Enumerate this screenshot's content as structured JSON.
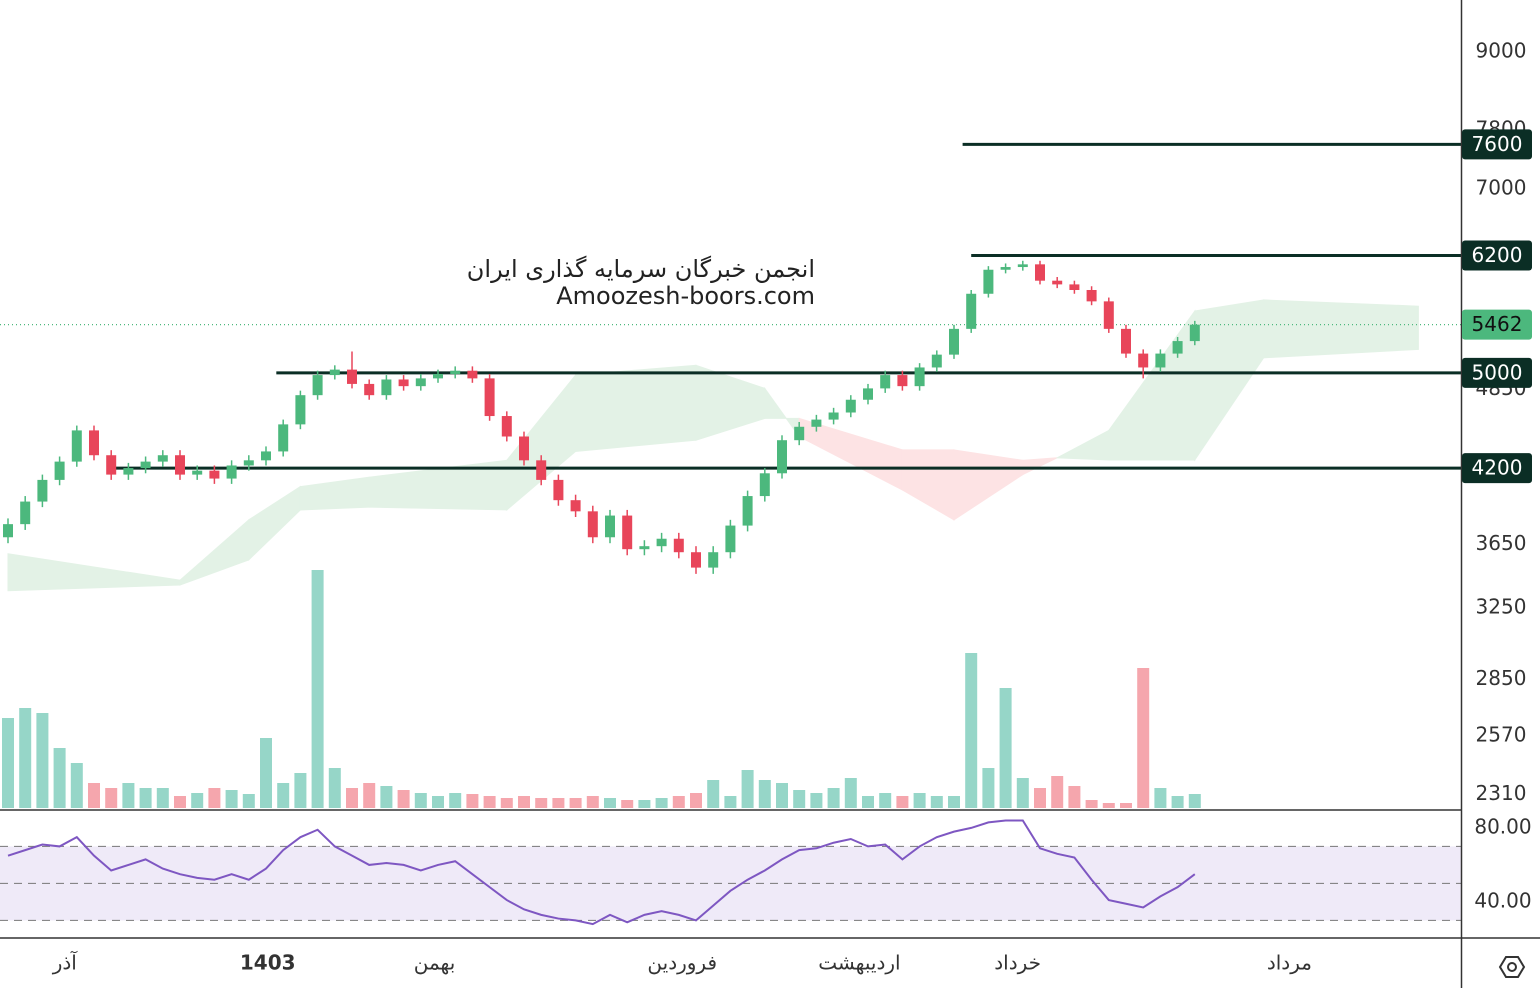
{
  "chart_data": {
    "type": "candlestick",
    "watermark": [
      "انجمن خبرگان سرمایه گذاری ایران",
      "Amoozesh-boors.com"
    ],
    "log_scale": true,
    "ylim": [
      2245,
      9900
    ],
    "yticks": [
      9000,
      7800,
      7000,
      4850,
      3650,
      3250,
      2850,
      2570,
      2310
    ],
    "up_color": "#4cb87d",
    "down_color": "#e8455a",
    "volume_up_color": "#96d6c8",
    "volume_down_color": "#f5a6ad",
    "open": [
      3700,
      3790,
      3950,
      4110,
      4250,
      4500,
      4300,
      4150,
      4200,
      4250,
      4300,
      4150,
      4180,
      4120,
      4220,
      4260,
      4330,
      4550,
      4800,
      4980,
      5030,
      4900,
      4800,
      4940,
      4880,
      4950,
      4990,
      5020,
      4950,
      4620,
      4450,
      4260,
      4110,
      3960,
      3880,
      3700,
      3850,
      3620,
      3640,
      3690,
      3600,
      3500,
      3600,
      3780,
      3990,
      4160,
      4420,
      4530,
      4590,
      4650,
      4760,
      4860,
      4980,
      4880,
      5050,
      5170,
      5420,
      5780,
      6040,
      6070,
      6100,
      5920,
      5880,
      5820,
      5700,
      5420,
      5180,
      5050,
      5180,
      5300
    ],
    "high": [
      3830,
      3990,
      4150,
      4290,
      4540,
      4540,
      4340,
      4240,
      4290,
      4340,
      4340,
      4220,
      4220,
      4260,
      4300,
      4370,
      4590,
      4840,
      5020,
      5070,
      5200,
      4940,
      4980,
      4980,
      4990,
      5030,
      5060,
      5060,
      4990,
      4660,
      4490,
      4300,
      4150,
      4000,
      3920,
      3890,
      3890,
      3680,
      3730,
      3730,
      3640,
      3640,
      3820,
      4030,
      4200,
      4460,
      4570,
      4630,
      4690,
      4800,
      4900,
      5020,
      5020,
      5090,
      5210,
      5460,
      5820,
      6080,
      6110,
      6140,
      6140,
      5960,
      5920,
      5860,
      5740,
      5460,
      5220,
      5220,
      5340,
      5500
    ],
    "low": [
      3660,
      3750,
      3910,
      4070,
      4210,
      4260,
      4110,
      4110,
      4160,
      4210,
      4110,
      4110,
      4080,
      4080,
      4180,
      4220,
      4290,
      4510,
      4760,
      4940,
      4860,
      4760,
      4760,
      4840,
      4840,
      4910,
      4950,
      4910,
      4580,
      4410,
      4220,
      4070,
      3920,
      3840,
      3660,
      3660,
      3580,
      3580,
      3600,
      3560,
      3460,
      3460,
      3560,
      3740,
      3950,
      4120,
      4380,
      4490,
      4550,
      4610,
      4720,
      4820,
      4840,
      4840,
      5010,
      5130,
      5380,
      5740,
      6000,
      6030,
      5880,
      5840,
      5780,
      5660,
      5380,
      5140,
      4950,
      5010,
      5140,
      5260
    ],
    "close": [
      3790,
      3950,
      4110,
      4250,
      4500,
      4300,
      4150,
      4200,
      4250,
      4300,
      4150,
      4180,
      4120,
      4220,
      4260,
      4330,
      4550,
      4800,
      4980,
      5030,
      4900,
      4800,
      4940,
      4880,
      4950,
      4990,
      5020,
      4950,
      4620,
      4450,
      4260,
      4110,
      3960,
      3880,
      3700,
      3850,
      3620,
      3640,
      3690,
      3600,
      3500,
      3600,
      3780,
      3990,
      4160,
      4420,
      4530,
      4590,
      4650,
      4760,
      4860,
      4980,
      4880,
      5050,
      5170,
      5420,
      5780,
      6040,
      6070,
      6100,
      5920,
      5880,
      5820,
      5700,
      5420,
      5180,
      5050,
      5180,
      5300,
      5462
    ],
    "volume": [
      90,
      100,
      95,
      60,
      45,
      25,
      20,
      25,
      20,
      20,
      12,
      15,
      20,
      18,
      14,
      70,
      25,
      35,
      238,
      40,
      20,
      25,
      22,
      18,
      15,
      12,
      15,
      14,
      12,
      10,
      12,
      10,
      10,
      10,
      12,
      10,
      8,
      8,
      10,
      12,
      15,
      28,
      12,
      38,
      28,
      25,
      18,
      15,
      20,
      30,
      12,
      15,
      12,
      15,
      12,
      12,
      155,
      40,
      120,
      30,
      20,
      32,
      22,
      8,
      5,
      5,
      140,
      20,
      12,
      14
    ],
    "cloud": {
      "x": [
        0,
        10,
        14,
        17,
        21,
        29,
        33,
        40,
        44,
        46,
        52,
        55,
        59,
        61,
        64,
        69,
        73,
        82
      ],
      "span_a": [
        3590,
        3420,
        3820,
        4060,
        4130,
        4260,
        4980,
        5070,
        4860,
        4450,
        4035,
        3820,
        4150,
        4280,
        4500,
        5600,
        5715,
        5650
      ],
      "span_b": [
        3355,
        3390,
        3550,
        3890,
        3910,
        3890,
        4330,
        4420,
        4600,
        4600,
        4342,
        4342,
        4260,
        4280,
        4263,
        4263,
        5140,
        5220
      ],
      "up_color": "#e3f2e6",
      "down_color": "#fde3e4"
    },
    "levels": [
      {
        "value": 7600,
        "start": 55.5
      },
      {
        "value": 6200,
        "start": 56
      },
      {
        "value": 5000,
        "start": 15.6
      },
      {
        "value": 4200,
        "start": 6
      }
    ],
    "level_color": "#0b2e25",
    "last_price": 5462,
    "last_price_color": "#4cb87d",
    "rsi": {
      "values": [
        65,
        68,
        71,
        70,
        75,
        65,
        57,
        60,
        63,
        58,
        55,
        53,
        52,
        55,
        52,
        58,
        68,
        75,
        79,
        70,
        65,
        60,
        61,
        60,
        57,
        60,
        62,
        55,
        48,
        41,
        36,
        33,
        31,
        30,
        28,
        33,
        29,
        33,
        35,
        33,
        30,
        38,
        46,
        52,
        57,
        63,
        68,
        69,
        72,
        74,
        70,
        71,
        63,
        70,
        75,
        78,
        80,
        83,
        84,
        84,
        69,
        66,
        64,
        52,
        41,
        39,
        37,
        43,
        48,
        55
      ],
      "color": "#7e57c2",
      "ylim": [
        20.5,
        88.6
      ],
      "yticks": [
        {
          "value": 80,
          "label": "80.00"
        },
        {
          "value": 40,
          "label": "40.00"
        }
      ],
      "bands": [
        30,
        50,
        70
      ]
    },
    "x_labels": [
      {
        "index": 3.3,
        "label": "آذر"
      },
      {
        "index": 15.1,
        "label": "1403",
        "bold": true
      },
      {
        "index": 24.8,
        "label": "بهمن"
      },
      {
        "index": 39.2,
        "label": "فروردین"
      },
      {
        "index": 49.5,
        "label": "اردیبهشت"
      },
      {
        "index": 58.7,
        "label": "خرداد"
      },
      {
        "index": 74.5,
        "label": "مرداد"
      }
    ]
  }
}
